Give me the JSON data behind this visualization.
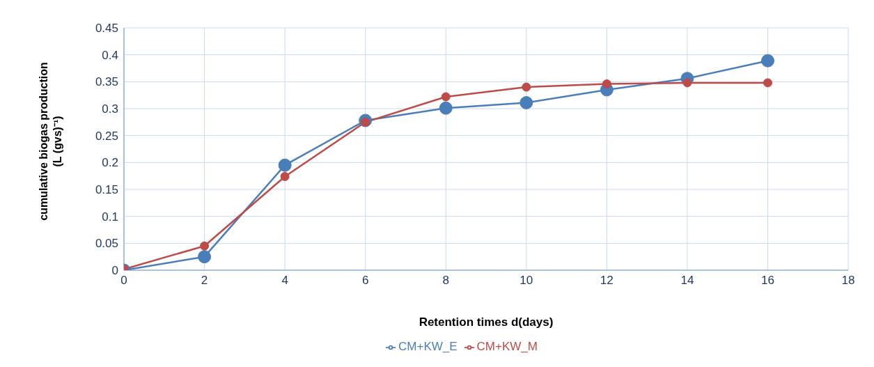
{
  "chart_data": {
    "type": "line",
    "xlabel": "Retention times d(days)",
    "ylabel": "cumulative biogas production\n(L (gvs)⁻¹)",
    "x": [
      0,
      2,
      4,
      6,
      8,
      10,
      12,
      14,
      16
    ],
    "series": [
      {
        "name": "CM+KW_E",
        "color": "#4a7ebb",
        "values": [
          0,
          0.025,
          0.195,
          0.278,
          0.301,
          0.311,
          0.335,
          0.356,
          0.389
        ]
      },
      {
        "name": "CM+KW_M",
        "color": "#be4b48",
        "values": [
          0.002,
          0.045,
          0.174,
          0.275,
          0.322,
          0.34,
          0.346,
          0.348,
          0.348
        ]
      }
    ],
    "xlim": [
      0,
      18
    ],
    "xticks": [
      0,
      2,
      4,
      6,
      8,
      10,
      12,
      14,
      16,
      18
    ],
    "ylim": [
      0,
      0.45
    ],
    "yticks": [
      0,
      0.05,
      0.1,
      0.15,
      0.2,
      0.25,
      0.3,
      0.35,
      0.4,
      0.45
    ],
    "grid": true,
    "legend": "bottom",
    "marker": "circle",
    "line_style": "solid"
  }
}
